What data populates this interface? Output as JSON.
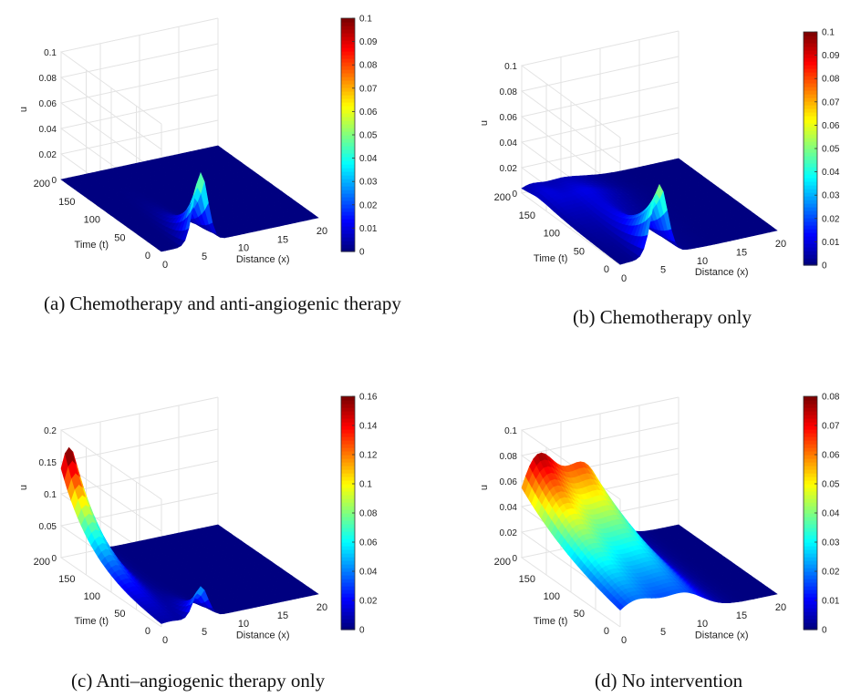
{
  "figure": {
    "captions": {
      "a": "(a) Chemotherapy and anti-angiogenic therapy",
      "b": "(b) Chemotherapy only",
      "c": "(c) Anti–angiogenic therapy only",
      "d": "(d) No intervention"
    },
    "colormap": "jet"
  },
  "chart_data": [
    {
      "id": "a",
      "type": "surface",
      "title": "(a) Chemotherapy and anti-angiogenic therapy",
      "xlabel": "Distance (x)",
      "ylabel": "Time (t)",
      "zlabel": "u",
      "xlim": [
        0,
        20
      ],
      "ylim": [
        0,
        200
      ],
      "zlim": [
        0,
        0.1
      ],
      "xticks": [
        "0",
        "5",
        "10",
        "15",
        "20"
      ],
      "yticks": [
        "0",
        "50",
        "100",
        "150",
        "200"
      ],
      "zticks": [
        "0",
        "0.02",
        "0.04",
        "0.06",
        "0.08",
        "0.1"
      ],
      "colorbar": {
        "range": [
          0,
          0.1
        ],
        "ticks": [
          "0",
          "0.01",
          "0.02",
          "0.03",
          "0.04",
          "0.05",
          "0.06",
          "0.07",
          "0.08",
          "0.09",
          "0.1"
        ]
      },
      "peaks": [
        {
          "x": 5,
          "t": 0,
          "u": 0.055,
          "spread_x": 0.9,
          "decay_t": 25
        }
      ]
    },
    {
      "id": "b",
      "type": "surface",
      "title": "(b) Chemotherapy only",
      "xlabel": "Distance (x)",
      "ylabel": "Time (t)",
      "zlabel": "u",
      "xlim": [
        0,
        20
      ],
      "ylim": [
        0,
        200
      ],
      "zlim": [
        0,
        0.1
      ],
      "xticks": [
        "0",
        "5",
        "10",
        "15",
        "20"
      ],
      "yticks": [
        "0",
        "50",
        "100",
        "150",
        "200"
      ],
      "zticks": [
        "0",
        "0.02",
        "0.04",
        "0.06",
        "0.08",
        "0.1"
      ],
      "colorbar": {
        "range": [
          0,
          0.1
        ],
        "ticks": [
          "0",
          "0.01",
          "0.02",
          "0.03",
          "0.04",
          "0.05",
          "0.06",
          "0.07",
          "0.08",
          "0.09",
          "0.1"
        ]
      },
      "peaks": [
        {
          "x": 5,
          "t": 0,
          "u": 0.055,
          "spread_x": 1.0,
          "decay_t": 40
        },
        {
          "x": 1,
          "t": 170,
          "u": 0.006,
          "spread_x": 1.2,
          "decay_t": 60
        },
        {
          "x": 5,
          "t": 150,
          "u": 0.009,
          "spread_x": 3,
          "decay_t": 80
        }
      ]
    },
    {
      "id": "c",
      "type": "surface",
      "title": "(c) Anti–angiogenic therapy only",
      "xlabel": "Distance (x)",
      "ylabel": "Time (t)",
      "zlabel": "u",
      "xlim": [
        0,
        20
      ],
      "ylim": [
        0,
        200
      ],
      "zlim": [
        0,
        0.2
      ],
      "xticks": [
        "0",
        "5",
        "10",
        "15",
        "20"
      ],
      "yticks": [
        "0",
        "50",
        "100",
        "150",
        "200"
      ],
      "zticks": [
        "0",
        "0.05",
        "0.1",
        "0.15",
        "0.2"
      ],
      "colorbar": {
        "range": [
          0,
          0.16
        ],
        "ticks": [
          "0",
          "0.02",
          "0.04",
          "0.06",
          "0.08",
          "0.1",
          "0.12",
          "0.14",
          "0.16"
        ]
      },
      "peaks": [
        {
          "x": 1,
          "t": 200,
          "u": 0.17,
          "spread_x": 1.6,
          "decay_t": 60
        },
        {
          "x": 5,
          "t": 0,
          "u": 0.05,
          "spread_x": 0.9,
          "decay_t": 20
        }
      ]
    },
    {
      "id": "d",
      "type": "surface",
      "title": "(d) No intervention",
      "xlabel": "Distance (x)",
      "ylabel": "Time (t)",
      "zlabel": "u",
      "xlim": [
        0,
        20
      ],
      "ylim": [
        0,
        200
      ],
      "zlim": [
        0,
        0.1
      ],
      "xticks": [
        "0",
        "5",
        "10",
        "15",
        "20"
      ],
      "yticks": [
        "0",
        "50",
        "100",
        "150",
        "200"
      ],
      "zticks": [
        "0",
        "0.02",
        "0.04",
        "0.06",
        "0.08",
        "0.1"
      ],
      "colorbar": {
        "range": [
          0,
          0.08
        ],
        "ticks": [
          "0",
          "0.01",
          "0.02",
          "0.03",
          "0.04",
          "0.05",
          "0.06",
          "0.07",
          "0.08"
        ]
      },
      "peaks": [
        {
          "x": 2,
          "t": 200,
          "u": 0.075,
          "spread_x": 2.5,
          "decay_t": 140
        },
        {
          "x": 8,
          "t": 200,
          "u": 0.06,
          "spread_x": 2.5,
          "decay_t": 150
        }
      ]
    }
  ]
}
